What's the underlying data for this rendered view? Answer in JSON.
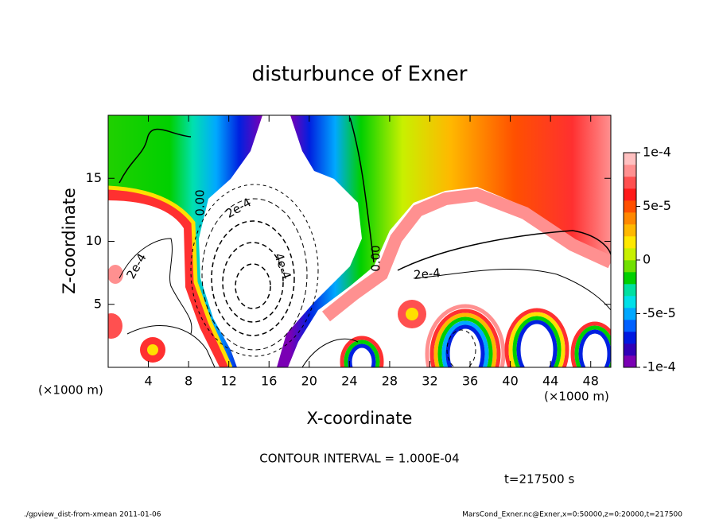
{
  "chart_data": {
    "type": "contour",
    "title": "disturbunce of Exner",
    "xlabel": "X-coordinate",
    "ylabel": "Z-coordinate",
    "x_units": "(×1000 m)",
    "y_units": "(×1000 m)",
    "xlim": [
      0,
      50
    ],
    "ylim": [
      0,
      20
    ],
    "xticks": [
      4,
      8,
      12,
      16,
      20,
      24,
      28,
      32,
      36,
      40,
      44,
      48
    ],
    "yticks": [
      5,
      10,
      15
    ],
    "clim": [
      -0.0001,
      0.0001
    ],
    "cticks": [
      {
        "value": 0.0001,
        "label": "1e-4"
      },
      {
        "value": 5e-05,
        "label": "5e-5"
      },
      0,
      {
        "value": -5e-05,
        "label": "-5e-5"
      },
      {
        "value": -0.0001,
        "label": "-1e-4"
      }
    ],
    "colormap": [
      "#7a00b4",
      "#3000b8",
      "#0018e0",
      "#0060ff",
      "#00a8ff",
      "#00e0e8",
      "#00e0a0",
      "#00d000",
      "#70e000",
      "#c8f000",
      "#ffe800",
      "#ffb800",
      "#ff8800",
      "#ff5000",
      "#ff1a1a",
      "#ff5050",
      "#ff9090",
      "#ffc0c0"
    ],
    "contour_labels": [
      "0.00",
      "2e-4",
      "2e-4",
      "4e-4",
      "0.00",
      "2e-4"
    ],
    "contour_interval_text": "CONTOUR INTERVAL = 1.000E-04",
    "time_text": "t=217500 s",
    "footer_left": "./gpview_dist-from-xmean  2011-01-06",
    "footer_right": "MarsCond_Exner.nc@Exner,x=0:50000,z=0:20000,t=217500"
  }
}
